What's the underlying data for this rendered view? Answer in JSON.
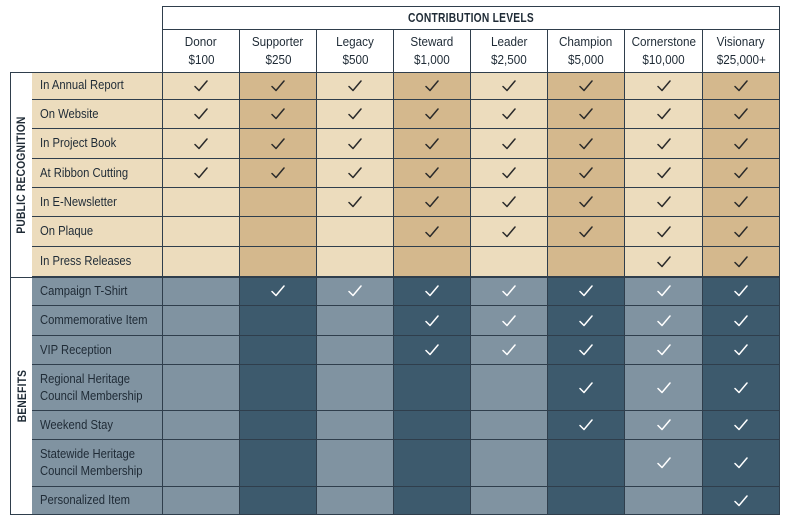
{
  "header": {
    "title": "CONTRIBUTION LEVELS"
  },
  "levels": [
    {
      "name": "Donor",
      "amount": "$100"
    },
    {
      "name": "Supporter",
      "amount": "$250"
    },
    {
      "name": "Legacy",
      "amount": "$500"
    },
    {
      "name": "Steward",
      "amount": "$1,000"
    },
    {
      "name": "Leader",
      "amount": "$2,500"
    },
    {
      "name": "Champion",
      "amount": "$5,000"
    },
    {
      "name": "Cornerstone",
      "amount": "$10,000"
    },
    {
      "name": "Visionary",
      "amount": "$25,000+"
    }
  ],
  "sections": [
    {
      "label": "PUBLIC RECOGNITION",
      "rows": [
        {
          "lines": [
            "In Annual Report"
          ],
          "checks": [
            true,
            true,
            true,
            true,
            true,
            true,
            true,
            true
          ]
        },
        {
          "lines": [
            "On Website"
          ],
          "checks": [
            true,
            true,
            true,
            true,
            true,
            true,
            true,
            true
          ]
        },
        {
          "lines": [
            "In Project Book"
          ],
          "checks": [
            true,
            true,
            true,
            true,
            true,
            true,
            true,
            true
          ]
        },
        {
          "lines": [
            "At Ribbon Cutting"
          ],
          "checks": [
            true,
            true,
            true,
            true,
            true,
            true,
            true,
            true
          ]
        },
        {
          "lines": [
            "In E-Newsletter"
          ],
          "checks": [
            false,
            false,
            true,
            true,
            true,
            true,
            true,
            true
          ]
        },
        {
          "lines": [
            "On Plaque"
          ],
          "checks": [
            false,
            false,
            false,
            true,
            true,
            true,
            true,
            true
          ]
        },
        {
          "lines": [
            "In Press Releases"
          ],
          "checks": [
            false,
            false,
            false,
            false,
            false,
            false,
            true,
            true
          ]
        }
      ]
    },
    {
      "label": "BENEFITS",
      "rows": [
        {
          "lines": [
            "Campaign T-Shirt"
          ],
          "checks": [
            false,
            true,
            true,
            true,
            true,
            true,
            true,
            true
          ]
        },
        {
          "lines": [
            "Commemorative Item"
          ],
          "checks": [
            false,
            false,
            false,
            true,
            true,
            true,
            true,
            true
          ]
        },
        {
          "lines": [
            "VIP Reception"
          ],
          "checks": [
            false,
            false,
            false,
            true,
            true,
            true,
            true,
            true
          ]
        },
        {
          "lines": [
            "Regional Heritage",
            "Council Membership"
          ],
          "checks": [
            false,
            false,
            false,
            false,
            false,
            true,
            true,
            true
          ]
        },
        {
          "lines": [
            "Weekend Stay"
          ],
          "checks": [
            false,
            false,
            false,
            false,
            false,
            true,
            true,
            true
          ]
        },
        {
          "lines": [
            "Statewide Heritage",
            "Council Membership"
          ],
          "checks": [
            false,
            false,
            false,
            false,
            false,
            false,
            true,
            true
          ]
        },
        {
          "lines": [
            "Personalized Item"
          ],
          "checks": [
            false,
            false,
            false,
            false,
            false,
            false,
            false,
            true
          ]
        }
      ]
    }
  ],
  "colors": {
    "recognition_light": "#ecdcbd",
    "recognition_dark": "#d4b88d",
    "benefits_light": "#8093a1",
    "benefits_dark": "#3d5a6d",
    "line": "#2f3e4c",
    "check_dark": "#2a2a2a",
    "check_light": "#ffffff"
  }
}
